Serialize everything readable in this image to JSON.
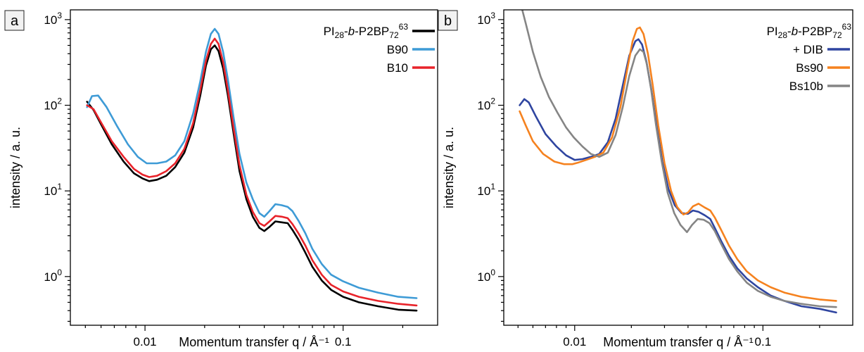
{
  "chart_data": [
    {
      "type": "line",
      "panel_label": "a",
      "xlabel": "Momentum transfer q / Å⁻¹",
      "ylabel": "intensity / a. u.",
      "xscale": "log",
      "yscale": "log",
      "xlim": [
        0.0042,
        0.3
      ],
      "ylim": [
        0.27,
        1300
      ],
      "x_ticks": [
        {
          "value": 0.01,
          "label": "0.01"
        },
        {
          "value": 0.1,
          "label": "0.1"
        }
      ],
      "y_ticks": [
        {
          "value": 1,
          "base": "10",
          "exp": "0"
        },
        {
          "value": 10,
          "base": "10",
          "exp": "1"
        },
        {
          "value": 100,
          "base": "10",
          "exp": "2"
        },
        {
          "value": 1000,
          "base": "10",
          "exp": "3"
        }
      ],
      "grid": false,
      "legend_position": "top-right",
      "series": [
        {
          "name": "PI28-b-P2BP7263",
          "legend": {
            "parts": [
              {
                "t": "PI"
              },
              {
                "t": "28",
                "sub": true
              },
              {
                "t": "-"
              },
              {
                "t": "b",
                "italic": true
              },
              {
                "t": "-P2BP"
              },
              {
                "t": "72",
                "sub": true
              },
              {
                "t": "63",
                "sup": true
              }
            ]
          },
          "color": "#000000",
          "x": [
            0.0051,
            0.0055,
            0.006,
            0.0068,
            0.0078,
            0.0088,
            0.0097,
            0.0105,
            0.0115,
            0.0128,
            0.0142,
            0.0158,
            0.0175,
            0.019,
            0.0203,
            0.0215,
            0.0225,
            0.0235,
            0.0248,
            0.0262,
            0.028,
            0.03,
            0.0325,
            0.035,
            0.0378,
            0.04,
            0.0425,
            0.0455,
            0.049,
            0.0525,
            0.0555,
            0.0595,
            0.0645,
            0.07,
            0.078,
            0.087,
            0.1,
            0.12,
            0.15,
            0.19,
            0.235
          ],
          "y": [
            110,
            88,
            60,
            35,
            22,
            16,
            14,
            13,
            13.5,
            15,
            19,
            28,
            55,
            130,
            290,
            450,
            500,
            430,
            270,
            130,
            47,
            17,
            8,
            5,
            3.7,
            3.4,
            3.8,
            4.4,
            4.3,
            4.2,
            3.5,
            2.7,
            1.9,
            1.3,
            0.9,
            0.7,
            0.58,
            0.5,
            0.45,
            0.41,
            0.4
          ]
        },
        {
          "name": "B90",
          "legend": {
            "parts": [
              {
                "t": "B90"
              }
            ]
          },
          "color": "#3e9bd6",
          "x": [
            0.0051,
            0.0054,
            0.0058,
            0.0064,
            0.0072,
            0.0082,
            0.0092,
            0.0102,
            0.0115,
            0.0128,
            0.0142,
            0.0158,
            0.0175,
            0.019,
            0.0203,
            0.0215,
            0.0225,
            0.0235,
            0.0248,
            0.0262,
            0.028,
            0.03,
            0.0325,
            0.035,
            0.0378,
            0.04,
            0.0425,
            0.0455,
            0.049,
            0.0525,
            0.0555,
            0.0595,
            0.0645,
            0.07,
            0.078,
            0.087,
            0.1,
            0.12,
            0.15,
            0.19,
            0.235
          ],
          "y": [
            95,
            128,
            130,
            95,
            58,
            35,
            25,
            21,
            21,
            22,
            26,
            38,
            80,
            190,
            420,
            680,
            780,
            680,
            420,
            200,
            72,
            27,
            12.5,
            8,
            5.5,
            5,
            5.8,
            7,
            6.8,
            6.5,
            5.8,
            4.5,
            3.2,
            2.1,
            1.4,
            1.05,
            0.88,
            0.74,
            0.65,
            0.58,
            0.56
          ]
        },
        {
          "name": "B10",
          "legend": {
            "parts": [
              {
                "t": "B10"
              }
            ]
          },
          "color": "#e8232a",
          "x": [
            0.0051,
            0.0055,
            0.006,
            0.0068,
            0.0078,
            0.0088,
            0.0097,
            0.0105,
            0.0115,
            0.0128,
            0.0142,
            0.0158,
            0.0175,
            0.019,
            0.0203,
            0.0215,
            0.0225,
            0.0235,
            0.0248,
            0.0262,
            0.028,
            0.03,
            0.0325,
            0.035,
            0.0378,
            0.04,
            0.0425,
            0.0455,
            0.049,
            0.0525,
            0.0555,
            0.0595,
            0.0645,
            0.07,
            0.078,
            0.087,
            0.1,
            0.12,
            0.15,
            0.19,
            0.235
          ],
          "y": [
            100,
            90,
            63,
            38,
            25,
            18,
            15.5,
            14.5,
            15,
            17,
            21,
            31,
            62,
            150,
            330,
            520,
            600,
            520,
            320,
            150,
            54,
            20,
            9,
            5.7,
            4.2,
            3.9,
            4.4,
            5.1,
            5,
            4.8,
            4.1,
            3.2,
            2.3,
            1.55,
            1.05,
            0.8,
            0.67,
            0.58,
            0.52,
            0.48,
            0.46
          ]
        }
      ]
    },
    {
      "type": "line",
      "panel_label": "b",
      "xlabel": "Momentum transfer q / Å⁻¹",
      "ylabel": "intensity / a. u.",
      "xscale": "log",
      "yscale": "log",
      "xlim": [
        0.0042,
        0.3
      ],
      "ylim": [
        0.27,
        1300
      ],
      "x_ticks": [
        {
          "value": 0.01,
          "label": "0.01"
        },
        {
          "value": 0.1,
          "label": "0.1"
        }
      ],
      "y_ticks": [
        {
          "value": 1,
          "base": "10",
          "exp": "0"
        },
        {
          "value": 10,
          "base": "10",
          "exp": "1"
        },
        {
          "value": 100,
          "base": "10",
          "exp": "2"
        },
        {
          "value": 1000,
          "base": "10",
          "exp": "3"
        }
      ],
      "grid": false,
      "legend_position": "top-right",
      "legend_header": {
        "parts": [
          {
            "t": "PI"
          },
          {
            "t": "28",
            "sub": true
          },
          {
            "t": "-"
          },
          {
            "t": "b",
            "italic": true
          },
          {
            "t": "-P2BP"
          },
          {
            "t": "72",
            "sub": true
          },
          {
            "t": "63",
            "sup": true
          }
        ]
      },
      "series": [
        {
          "name": "+ DIB",
          "legend": {
            "parts": [
              {
                "t": "+ DIB"
              }
            ]
          },
          "color": "#2f45a0",
          "x": [
            0.0051,
            0.0054,
            0.0057,
            0.0062,
            0.007,
            0.008,
            0.009,
            0.01,
            0.011,
            0.0122,
            0.0135,
            0.015,
            0.0165,
            0.018,
            0.0195,
            0.021,
            0.0218,
            0.0228,
            0.024,
            0.0255,
            0.0272,
            0.0292,
            0.0315,
            0.034,
            0.037,
            0.04,
            0.0425,
            0.0455,
            0.049,
            0.0525,
            0.0555,
            0.06,
            0.066,
            0.073,
            0.082,
            0.094,
            0.11,
            0.13,
            0.16,
            0.2,
            0.245
          ],
          "y": [
            100,
            118,
            108,
            75,
            46,
            33,
            26,
            23,
            23.5,
            25,
            27,
            37,
            70,
            170,
            380,
            560,
            590,
            510,
            330,
            155,
            60,
            22,
            10.5,
            6.8,
            5.5,
            5.4,
            5.9,
            5.7,
            5.2,
            4.7,
            3.7,
            2.6,
            1.75,
            1.25,
            0.95,
            0.75,
            0.6,
            0.52,
            0.45,
            0.42,
            0.38
          ]
        },
        {
          "name": "Bs90",
          "legend": {
            "parts": [
              {
                "t": "Bs90"
              }
            ]
          },
          "color": "#f5821f",
          "x": [
            0.0051,
            0.0055,
            0.006,
            0.0068,
            0.0078,
            0.0088,
            0.0097,
            0.0105,
            0.0115,
            0.0128,
            0.0142,
            0.0158,
            0.0175,
            0.019,
            0.0203,
            0.0214,
            0.0222,
            0.0232,
            0.0245,
            0.026,
            0.0278,
            0.03,
            0.0325,
            0.035,
            0.0378,
            0.04,
            0.0425,
            0.0455,
            0.049,
            0.0525,
            0.0555,
            0.06,
            0.066,
            0.073,
            0.082,
            0.094,
            0.11,
            0.13,
            0.16,
            0.2,
            0.245
          ],
          "y": [
            85,
            58,
            38,
            27,
            22,
            20.5,
            20.5,
            21.5,
            23,
            25,
            28,
            42,
            95,
            260,
            560,
            780,
            810,
            680,
            400,
            170,
            58,
            21,
            10,
            6.5,
            5.3,
            5.6,
            6.6,
            7.1,
            6.4,
            5.9,
            4.9,
            3.5,
            2.3,
            1.6,
            1.15,
            0.9,
            0.75,
            0.65,
            0.58,
            0.54,
            0.52
          ]
        },
        {
          "name": "Bs10b",
          "legend": {
            "parts": [
              {
                "t": "Bs10b"
              }
            ]
          },
          "color": "#858585",
          "x": [
            0.0051,
            0.0055,
            0.006,
            0.0066,
            0.0073,
            0.0081,
            0.009,
            0.0099,
            0.011,
            0.0122,
            0.0135,
            0.015,
            0.0165,
            0.018,
            0.0195,
            0.021,
            0.0222,
            0.0232,
            0.0242,
            0.0255,
            0.027,
            0.029,
            0.0312,
            0.0338,
            0.0365,
            0.0395,
            0.042,
            0.045,
            0.0485,
            0.052,
            0.0555,
            0.06,
            0.066,
            0.073,
            0.082,
            0.094,
            0.11,
            0.13,
            0.16,
            0.2,
            0.245
          ],
          "y": [
            1700,
            900,
            420,
            215,
            125,
            82,
            55,
            42,
            33,
            27,
            25,
            28,
            45,
            95,
            220,
            380,
            450,
            420,
            300,
            150,
            60,
            22,
            9.5,
            5.5,
            4,
            3.3,
            4,
            4.7,
            4.6,
            4.2,
            3.4,
            2.4,
            1.6,
            1.15,
            0.85,
            0.68,
            0.58,
            0.52,
            0.48,
            0.45,
            0.44
          ]
        }
      ]
    }
  ]
}
